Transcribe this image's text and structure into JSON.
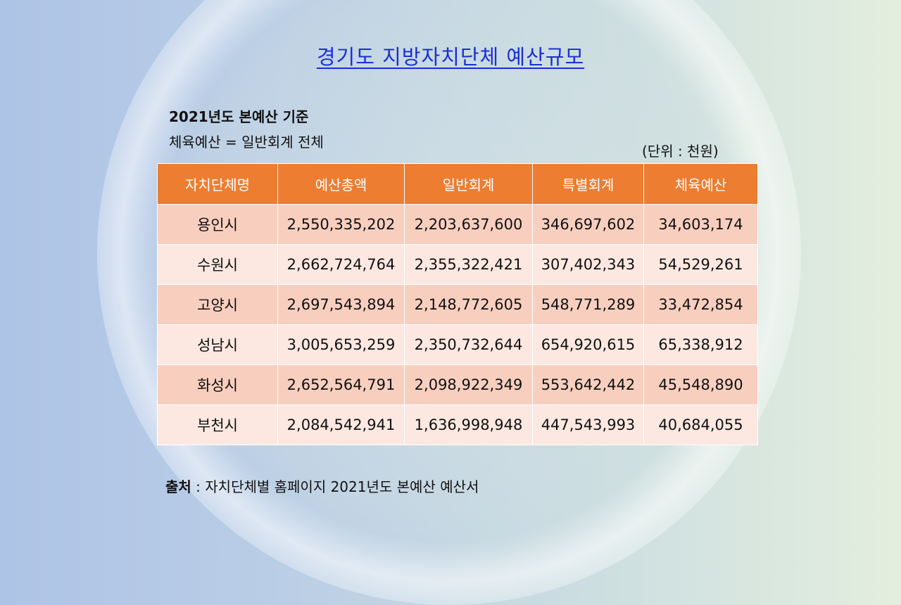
{
  "slide": {
    "title": "경기도 지방자치단체 예산규모",
    "subtitle_line1": "2021년도 본예산 기준",
    "subtitle_line2": "체육예산 = 일반회계 전체",
    "unit": "(단위 : 천원)",
    "source_label": "출처",
    "source_text": " : 자치단체별 홈페이지 2021년도 본예산 예산서"
  },
  "table": {
    "headers": [
      "자치단체명",
      "예산총액",
      "일반회계",
      "특별회계",
      "체육예산"
    ],
    "rows": [
      [
        "용인시",
        "2,550,335,202",
        "2,203,637,600",
        "346,697,602",
        "34,603,174"
      ],
      [
        "수원시",
        "2,662,724,764",
        "2,355,322,421",
        "307,402,343",
        "54,529,261"
      ],
      [
        "고양시",
        "2,697,543,894",
        "2,148,772,605",
        "548,771,289",
        "33,472,854"
      ],
      [
        "성남시",
        "3,005,653,259",
        "2,350,732,644",
        "654,920,615",
        "65,338,912"
      ],
      [
        "화성시",
        "2,652,564,791",
        "2,098,922,349",
        "553,642,442",
        "45,548,890"
      ],
      [
        "부천시",
        "2,084,542,941",
        "1,636,998,948",
        "447,543,993",
        "40,684,055"
      ]
    ]
  },
  "colors": {
    "header_bg": "#ed7d31",
    "row_odd": "#f8cfbf",
    "row_even": "#fce8e1",
    "title": "#1a2fd6"
  }
}
